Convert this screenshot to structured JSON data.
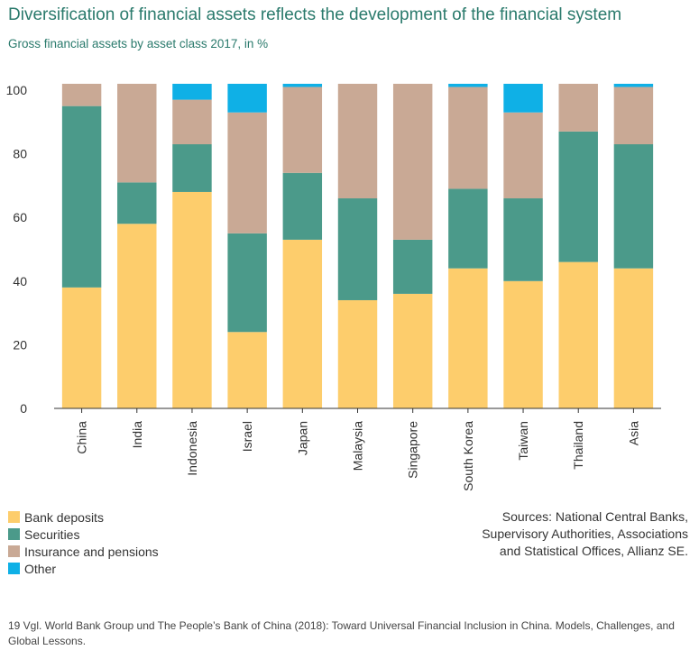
{
  "title": "Diversification of financial assets reflects the development of the financial system",
  "subtitle": "Gross financial assets by asset class 2017, in %",
  "chart_data": {
    "type": "bar",
    "stacked": true,
    "categories": [
      "China",
      "India",
      "Indonesia",
      "Israel",
      "Japan",
      "Malaysia",
      "Singapore",
      "South Korea",
      "Taiwan",
      "Thailand",
      "Asia"
    ],
    "series": [
      {
        "name": "Bank deposits",
        "color": "#fdcd6c",
        "values": [
          38,
          58,
          68,
          24,
          53,
          34,
          36,
          44,
          40,
          46,
          44
        ]
      },
      {
        "name": "Securities",
        "color": "#4b9a8a",
        "values": [
          57,
          13,
          15,
          31,
          21,
          32,
          17,
          25,
          26,
          41,
          39
        ]
      },
      {
        "name": "Insurance and pensions",
        "color": "#c9a995",
        "values": [
          7,
          31,
          14,
          38,
          27,
          36,
          49,
          32,
          27,
          15,
          18
        ]
      },
      {
        "name": "Other",
        "color": "#0fb0e6",
        "values": [
          0,
          0,
          5,
          9,
          1,
          0,
          0,
          1,
          9,
          0,
          1
        ]
      }
    ],
    "ylim": [
      0,
      100
    ],
    "yticks": [
      0,
      20,
      40,
      60,
      80,
      100
    ],
    "grid": false,
    "legend_position": "bottom-left"
  },
  "sources": [
    "Sources: National Central Banks,",
    "Supervisory Authorities, Associations",
    "and Statistical Offices, Allianz SE."
  ],
  "footnote": "19 Vgl. World Bank Group und The People’s Bank of China (2018): Toward Universal Financial Inclusion in China. Models, Challenges, and Global Lessons."
}
